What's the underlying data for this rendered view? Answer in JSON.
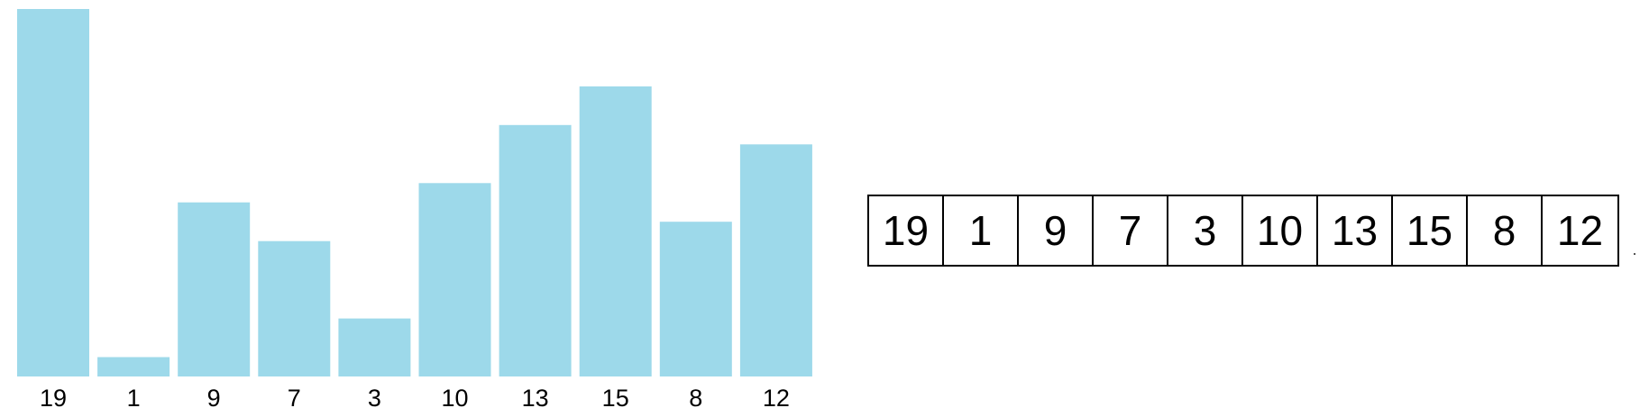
{
  "chart_data": {
    "type": "bar",
    "categories": [
      "19",
      "1",
      "9",
      "7",
      "3",
      "10",
      "13",
      "15",
      "8",
      "12"
    ],
    "values": [
      19,
      1,
      9,
      7,
      3,
      10,
      13,
      15,
      8,
      12
    ],
    "bar_color": "#9dd9ea",
    "ylim": [
      0,
      19
    ],
    "grid": false,
    "title": "",
    "xlabel": "",
    "ylabel": ""
  },
  "array": {
    "cells": [
      "19",
      "1",
      "9",
      "7",
      "3",
      "10",
      "13",
      "15",
      "8",
      "12"
    ]
  }
}
